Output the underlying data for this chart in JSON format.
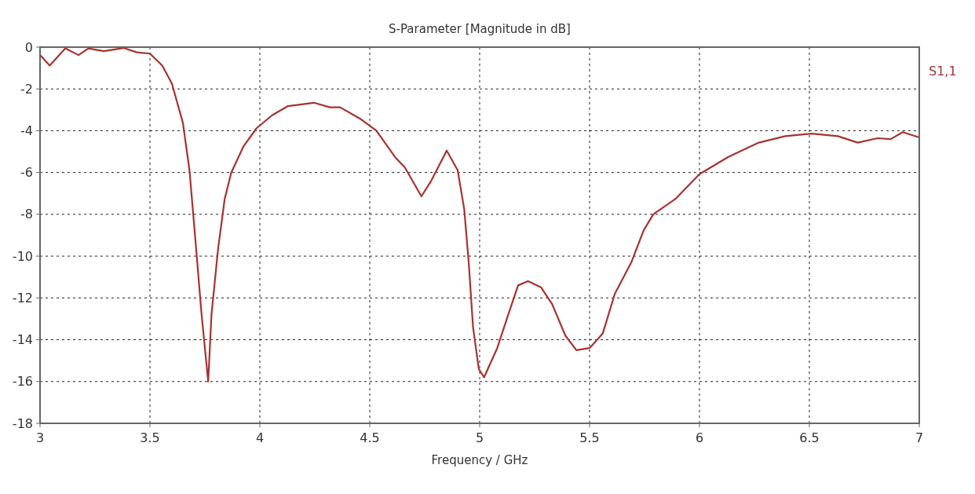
{
  "chart_data": {
    "type": "line",
    "title": "S-Parameter [Magnitude in dB]",
    "xlabel": "Frequency / GHz",
    "xlim": [
      3,
      7
    ],
    "xticks": [
      3,
      3.5,
      4,
      4.5,
      5,
      5.5,
      6,
      6.5,
      7
    ],
    "ylim": [
      -18,
      0
    ],
    "yticks": [
      0,
      -2,
      -4,
      -6,
      -8,
      -10,
      -12,
      -14,
      -16,
      -18
    ],
    "grid": true,
    "legend": "top right",
    "line_style": "solid",
    "marker": "none",
    "series": [
      {
        "name": "S1,1",
        "color": "#a83232",
        "x": [
          3,
          3.044,
          3.115,
          3.175,
          3.22,
          3.29,
          3.38,
          3.44,
          3.5,
          3.556,
          3.6,
          3.65,
          3.68,
          3.705,
          3.735,
          3.765,
          3.78,
          3.81,
          3.84,
          3.87,
          3.925,
          3.985,
          4.056,
          4.128,
          4.246,
          4.318,
          4.365,
          4.46,
          4.53,
          4.615,
          4.66,
          4.735,
          4.78,
          4.85,
          4.9,
          4.93,
          4.95,
          4.97,
          4.996,
          5.02,
          5.08,
          5.13,
          5.175,
          5.22,
          5.28,
          5.33,
          5.39,
          5.44,
          5.5,
          5.56,
          5.615,
          5.69,
          5.746,
          5.79,
          5.89,
          6,
          6.13,
          6.27,
          6.39,
          6.51,
          6.63,
          6.72,
          6.81,
          6.87,
          6.925,
          7
        ],
        "values": [
          -0.38,
          -0.88,
          -0.06,
          -0.38,
          -0.06,
          -0.19,
          -0.04,
          -0.25,
          -0.31,
          -0.88,
          -1.75,
          -3.63,
          -5.9,
          -9,
          -12.8,
          -16,
          -12.8,
          -9.65,
          -7.27,
          -6,
          -4.76,
          -3.88,
          -3.26,
          -2.82,
          -2.66,
          -2.88,
          -2.88,
          -3.45,
          -4,
          -5.26,
          -5.76,
          -7.14,
          -6.39,
          -4.95,
          -5.89,
          -7.77,
          -10.27,
          -13.4,
          -15.4,
          -15.8,
          -14.4,
          -12.8,
          -11.4,
          -11.2,
          -11.5,
          -12.3,
          -13.8,
          -14.5,
          -14.4,
          -13.7,
          -11.8,
          -10.3,
          -8.77,
          -8,
          -7.27,
          -6.08,
          -5.26,
          -4.57,
          -4.26,
          -4.14,
          -4.26,
          -4.57,
          -4.36,
          -4.4,
          -4.07,
          -4.32
        ]
      }
    ]
  }
}
